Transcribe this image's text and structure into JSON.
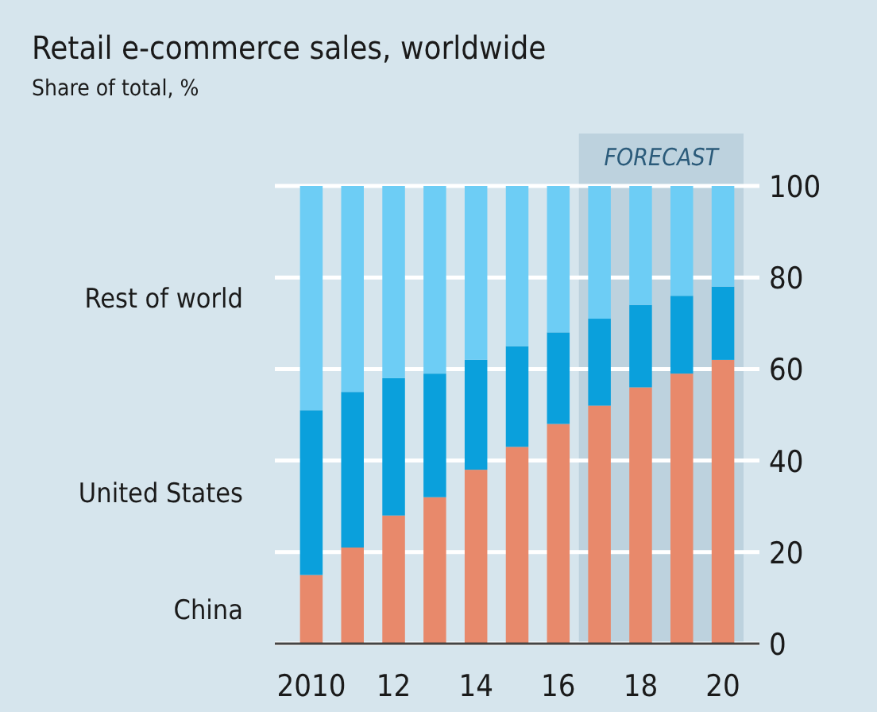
{
  "chart_data": {
    "type": "bar",
    "title": "Retail e-commerce sales, worldwide",
    "subtitle": "Share of total, %",
    "stacked": true,
    "legend": "left",
    "grid": "y",
    "x": [
      2010,
      2011,
      2012,
      2013,
      2014,
      2015,
      2016,
      2017,
      2018,
      2019,
      2020
    ],
    "xlim": [
      2009.5,
      2020.5
    ],
    "xticks": [
      {
        "value": 2010,
        "label": "2010"
      },
      {
        "value": 2012,
        "label": "12"
      },
      {
        "value": 2014,
        "label": "14"
      },
      {
        "value": 2016,
        "label": "16"
      },
      {
        "value": 2018,
        "label": "18"
      },
      {
        "value": 2020,
        "label": "20"
      }
    ],
    "ylim": [
      0,
      100
    ],
    "yticks": [
      0,
      20,
      40,
      60,
      80,
      100
    ],
    "bands": [
      {
        "axis": "x",
        "from": 2016.5,
        "to": 2020.5,
        "label": "FORECAST",
        "color": "#bdd2de"
      }
    ],
    "series": [
      {
        "name": "China",
        "color": "#e8896b",
        "values": [
          15,
          21,
          28,
          32,
          38,
          43,
          48,
          52,
          56,
          59,
          62
        ]
      },
      {
        "name": "United States",
        "color": "#0aa0dc",
        "values": [
          36,
          34,
          30,
          27,
          24,
          22,
          20,
          19,
          18,
          17,
          16
        ]
      },
      {
        "name": "Rest of world",
        "color": "#6dcdf5",
        "values": [
          49,
          45,
          42,
          41,
          38,
          35,
          32,
          29,
          26,
          24,
          22
        ]
      }
    ]
  }
}
